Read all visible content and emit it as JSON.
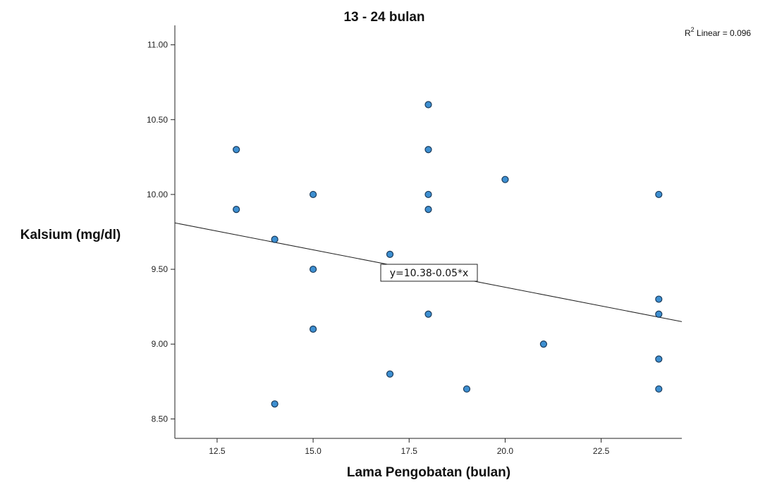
{
  "chart_data": {
    "type": "scatter",
    "title": "13 - 24 bulan",
    "xlabel": "Lama Pengobatan (bulan)",
    "ylabel": "Kalsium (mg/dl)",
    "xlim": [
      11.4,
      24.6
    ],
    "ylim": [
      8.37,
      11.13
    ],
    "x_ticks": [
      12.5,
      15.0,
      17.5,
      20.0,
      22.5
    ],
    "x_tick_labels": [
      "12.5",
      "15.0",
      "17.5",
      "20.0",
      "22.5"
    ],
    "y_ticks": [
      8.5,
      9.0,
      9.5,
      10.0,
      10.5,
      11.0
    ],
    "y_tick_labels": [
      "8.50",
      "9.00",
      "9.50",
      "10.00",
      "10.50",
      "11.00"
    ],
    "points": [
      {
        "x": 13,
        "y": 10.3
      },
      {
        "x": 13,
        "y": 9.9
      },
      {
        "x": 14,
        "y": 9.7
      },
      {
        "x": 14,
        "y": 8.6
      },
      {
        "x": 15,
        "y": 10.0
      },
      {
        "x": 15,
        "y": 9.5
      },
      {
        "x": 15,
        "y": 9.1
      },
      {
        "x": 17,
        "y": 9.6
      },
      {
        "x": 17,
        "y": 8.8
      },
      {
        "x": 18,
        "y": 10.6
      },
      {
        "x": 18,
        "y": 10.3
      },
      {
        "x": 18,
        "y": 10.0
      },
      {
        "x": 18,
        "y": 9.9
      },
      {
        "x": 18,
        "y": 9.2
      },
      {
        "x": 19,
        "y": 8.7
      },
      {
        "x": 20,
        "y": 10.1
      },
      {
        "x": 21,
        "y": 9.0
      },
      {
        "x": 24,
        "y": 10.0
      },
      {
        "x": 24,
        "y": 9.3
      },
      {
        "x": 24,
        "y": 9.2
      },
      {
        "x": 24,
        "y": 8.9
      },
      {
        "x": 24,
        "y": 8.7
      }
    ],
    "fit_line": {
      "intercept": 10.38,
      "slope": -0.05,
      "label": "y=10.38-0.05*x"
    },
    "r2_label": {
      "prefix": "R",
      "sup": "2",
      "suffix": " Linear = 0.096"
    },
    "marker_color": "#3d8fd1",
    "marker_edge_color": "#1a3a5a",
    "grid": false
  }
}
